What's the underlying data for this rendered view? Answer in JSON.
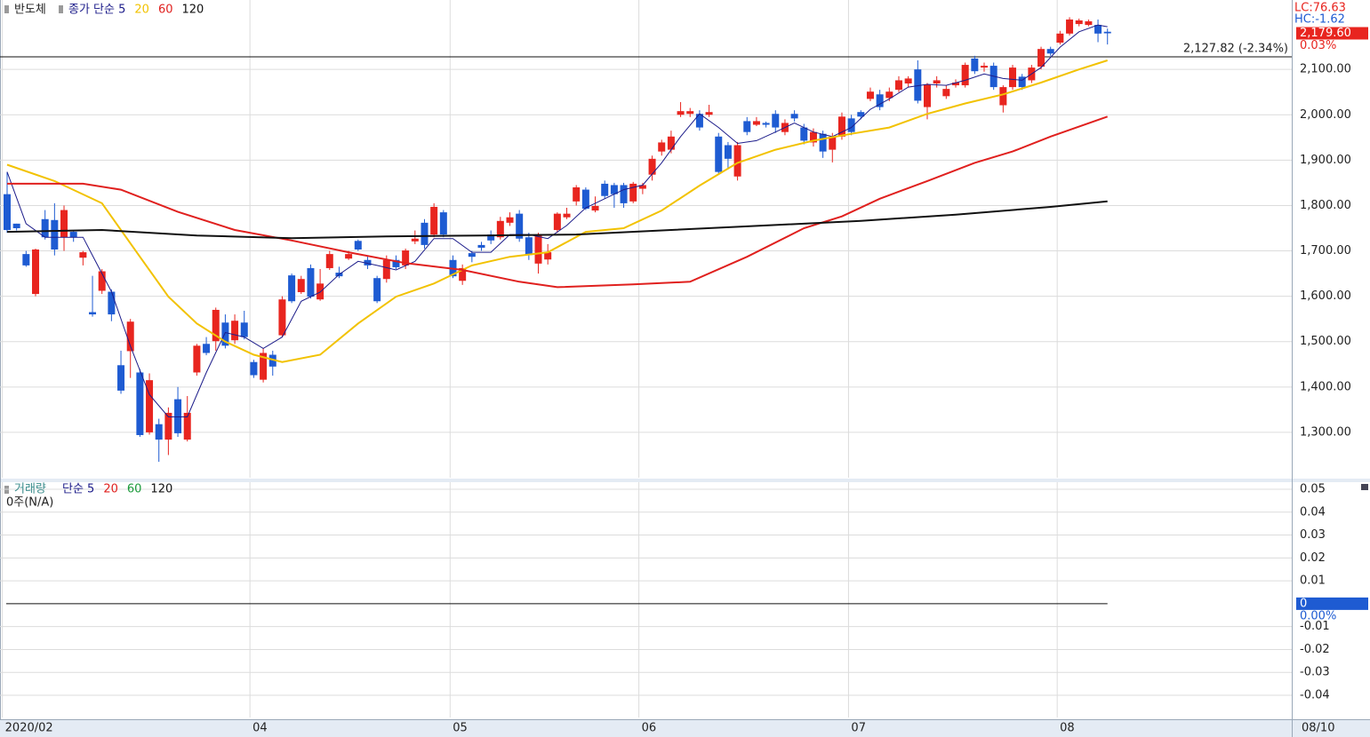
{
  "chart_data": [
    {
      "type": "candlestick",
      "name": "반도체",
      "up_color": "#e8251f",
      "down_color": "#1e5bd2",
      "open": [
        1825,
        1760,
        1693,
        1605,
        1770,
        1768,
        1730,
        1742,
        1685,
        1565,
        1612,
        1610,
        1448,
        1479,
        1432,
        1300,
        1318,
        1284,
        1373,
        1284,
        1432,
        1495,
        1501,
        1542,
        1503,
        1542,
        1455,
        1416,
        1471,
        1514,
        1646,
        1609,
        1662,
        1593,
        1662,
        1652,
        1683,
        1722,
        1680,
        1640,
        1638,
        1680,
        1668,
        1721,
        1762,
        1736,
        1785,
        1680,
        1634,
        1695,
        1713,
        1736,
        1730,
        1762,
        1782,
        1730,
        1672,
        1681,
        1746,
        1774,
        1809,
        1835,
        1789,
        1848,
        1845,
        1845,
        1809,
        1837,
        1868,
        1919,
        1923,
        2000,
        2002,
        2002,
        2000,
        1952,
        1933,
        1864,
        1986,
        1978,
        1982,
        2002,
        1962,
        2002,
        1972,
        1939,
        1958,
        1923,
        1952,
        1992,
        2006,
        2035,
        2045,
        2037,
        2055,
        2069,
        2100,
        2017,
        2069,
        2041,
        2065,
        2065,
        2124,
        2104,
        2108,
        2021,
        2061,
        2084,
        2076,
        2106,
        2145,
        2159,
        2179,
        2200,
        2198,
        2198,
        2183
      ],
      "high": [
        1874,
        1760,
        1700,
        1705,
        1790,
        1805,
        1800,
        1745,
        1700,
        1645,
        1660,
        1615,
        1480,
        1550,
        1440,
        1430,
        1330,
        1355,
        1400,
        1380,
        1495,
        1510,
        1575,
        1560,
        1560,
        1568,
        1460,
        1485,
        1480,
        1600,
        1650,
        1645,
        1670,
        1660,
        1700,
        1665,
        1700,
        1725,
        1690,
        1645,
        1690,
        1690,
        1705,
        1745,
        1770,
        1805,
        1790,
        1690,
        1670,
        1700,
        1720,
        1745,
        1775,
        1785,
        1790,
        1740,
        1740,
        1715,
        1785,
        1795,
        1845,
        1840,
        1820,
        1855,
        1850,
        1850,
        1852,
        1850,
        1910,
        1945,
        1965,
        2028,
        2015,
        2010,
        2022,
        1960,
        1940,
        1940,
        1995,
        1995,
        1985,
        2010,
        1990,
        2010,
        1980,
        1970,
        1965,
        1960,
        2005,
        2000,
        2010,
        2060,
        2055,
        2060,
        2085,
        2085,
        2120,
        2070,
        2085,
        2065,
        2078,
        2115,
        2130,
        2115,
        2115,
        2065,
        2110,
        2090,
        2110,
        2150,
        2150,
        2185,
        2215,
        2212,
        2210,
        2210,
        2190
      ],
      "low": [
        1740,
        1745,
        1665,
        1600,
        1725,
        1690,
        1700,
        1720,
        1668,
        1555,
        1605,
        1545,
        1385,
        1420,
        1290,
        1295,
        1235,
        1250,
        1290,
        1280,
        1425,
        1470,
        1480,
        1485,
        1495,
        1505,
        1420,
        1410,
        1425,
        1510,
        1585,
        1605,
        1595,
        1590,
        1658,
        1640,
        1680,
        1700,
        1660,
        1585,
        1630,
        1660,
        1660,
        1715,
        1705,
        1730,
        1730,
        1640,
        1625,
        1675,
        1700,
        1715,
        1725,
        1755,
        1720,
        1680,
        1650,
        1670,
        1740,
        1770,
        1800,
        1790,
        1785,
        1815,
        1795,
        1795,
        1805,
        1825,
        1855,
        1910,
        1915,
        1995,
        1995,
        1965,
        1995,
        1870,
        1880,
        1855,
        1955,
        1975,
        1972,
        1960,
        1955,
        1985,
        1935,
        1930,
        1905,
        1895,
        1945,
        1955,
        1990,
        2030,
        2010,
        2030,
        2050,
        2060,
        2025,
        1990,
        2060,
        2035,
        2060,
        2060,
        2090,
        2095,
        2055,
        2005,
        2055,
        2055,
        2070,
        2100,
        2130,
        2155,
        2175,
        2195,
        2195,
        2160,
        2155
      ],
      "close": [
        1746,
        1750,
        1668,
        1703,
        1730,
        1703,
        1790,
        1730,
        1697,
        1560,
        1655,
        1560,
        1392,
        1544,
        1294,
        1415,
        1284,
        1343,
        1298,
        1343,
        1491,
        1475,
        1570,
        1491,
        1546,
        1510,
        1426,
        1475,
        1445,
        1593,
        1589,
        1638,
        1599,
        1628,
        1693,
        1644,
        1693,
        1703,
        1668,
        1589,
        1680,
        1664,
        1701,
        1727,
        1713,
        1797,
        1736,
        1644,
        1662,
        1687,
        1707,
        1723,
        1766,
        1774,
        1727,
        1691,
        1736,
        1697,
        1782,
        1782,
        1840,
        1793,
        1799,
        1821,
        1825,
        1805,
        1848,
        1845,
        1903,
        1939,
        1952,
        2008,
        2008,
        1972,
        2006,
        1874,
        1903,
        1933,
        1962,
        1986,
        1978,
        1972,
        1982,
        1992,
        1943,
        1962,
        1919,
        1952,
        1996,
        1962,
        1996,
        2051,
        2017,
        2051,
        2076,
        2080,
        2031,
        2067,
        2076,
        2057,
        2071,
        2110,
        2096,
        2108,
        2061,
        2061,
        2104,
        2061,
        2104,
        2145,
        2135,
        2179,
        2210,
        2208,
        2206,
        2179,
        2179.6
      ],
      "series": [
        {
          "name": "종가 단순 5",
          "color": "#1c1c8a",
          "x": [
            0,
            2,
            4,
            6,
            8,
            9,
            11,
            13,
            15,
            17,
            19,
            21,
            23,
            25,
            27,
            29,
            31,
            33,
            35,
            37,
            39,
            41,
            43,
            45,
            47,
            49,
            51,
            53,
            55,
            57,
            59,
            61,
            63,
            65,
            67,
            69,
            71,
            73,
            75,
            77,
            79,
            81,
            83,
            85,
            87,
            89,
            91,
            93,
            95,
            97,
            99,
            101,
            103,
            105,
            107,
            109,
            111,
            113,
            115,
            116
          ],
          "values": [
            1874,
            1760,
            1730,
            1730,
            1730,
            1690,
            1610,
            1490,
            1383,
            1334,
            1334,
            1432,
            1520,
            1510,
            1485,
            1510,
            1589,
            1609,
            1648,
            1677,
            1668,
            1658,
            1677,
            1727,
            1727,
            1697,
            1697,
            1736,
            1736,
            1727,
            1756,
            1795,
            1815,
            1835,
            1845,
            1894,
            1952,
            2002,
            1972,
            1937,
            1943,
            1962,
            1982,
            1962,
            1952,
            1972,
            2012,
            2035,
            2061,
            2067,
            2065,
            2076,
            2090,
            2080,
            2076,
            2104,
            2149,
            2183,
            2198,
            2194
          ]
        },
        {
          "name": "20",
          "color": "#f2c200",
          "x": [
            0,
            5,
            10,
            14,
            17,
            20,
            23,
            26,
            29,
            33,
            37,
            41,
            45,
            49,
            53,
            57,
            61,
            65,
            69,
            73,
            77,
            81,
            85,
            89,
            93,
            97,
            101,
            105,
            109,
            113,
            116
          ],
          "values": [
            1890,
            1854,
            1805,
            1687,
            1599,
            1540,
            1500,
            1471,
            1455,
            1471,
            1540,
            1599,
            1628,
            1668,
            1687,
            1697,
            1742,
            1750,
            1789,
            1844,
            1894,
            1923,
            1943,
            1958,
            1972,
            2002,
            2025,
            2045,
            2071,
            2100,
            2120
          ]
        },
        {
          "name": "60",
          "color": "#e0201e",
          "x": [
            0,
            8,
            12,
            18,
            24,
            30,
            36,
            42,
            48,
            54,
            58,
            66,
            72,
            78,
            84,
            88,
            92,
            97,
            102,
            106,
            110,
            116
          ],
          "values": [
            1848,
            1848,
            1835,
            1786,
            1746,
            1723,
            1697,
            1673,
            1658,
            1632,
            1620,
            1626,
            1632,
            1687,
            1750,
            1776,
            1815,
            1854,
            1894,
            1919,
            1952,
            1996
          ]
        },
        {
          "name": "120",
          "color": "#111111",
          "x": [
            0,
            10,
            20,
            30,
            40,
            50,
            60,
            70,
            80,
            90,
            100,
            110,
            116
          ],
          "values": [
            1742,
            1746,
            1734,
            1728,
            1732,
            1734,
            1736,
            1746,
            1756,
            1766,
            1780,
            1797,
            1809
          ]
        }
      ],
      "xticks": [
        {
          "value": -0.5,
          "label": "2020/02"
        },
        {
          "value": 25.6,
          "label": "04"
        },
        {
          "value": 46.7,
          "label": "05"
        },
        {
          "value": 66.6,
          "label": "06"
        },
        {
          "value": 88.7,
          "label": "07"
        },
        {
          "value": 110.7,
          "label": "08"
        }
      ],
      "cursor_date_label": "08/10",
      "ylim": [
        1200,
        2253
      ],
      "yticks": [
        {
          "value": 1300,
          "label": "1,300.00"
        },
        {
          "value": 1400,
          "label": "1,400.00"
        },
        {
          "value": 1500,
          "label": "1,500.00"
        },
        {
          "value": 1600,
          "label": "1,600.00"
        },
        {
          "value": 1700,
          "label": "1,700.00"
        },
        {
          "value": 1800,
          "label": "1,800.00"
        },
        {
          "value": 1900,
          "label": "1,900.00"
        },
        {
          "value": 2000,
          "label": "2,000.00"
        },
        {
          "value": 2100,
          "label": "2,100.00"
        }
      ],
      "grid": true,
      "reference_line": {
        "value": 2127.82,
        "label": "2,127.82 (-2.34%)"
      },
      "current_price": {
        "value": 2179.6,
        "label": "2,179.60"
      },
      "change_label": "0.03%",
      "lc_label": "LC:76.63",
      "hc_label": "HC:-1.62"
    },
    {
      "type": "volume",
      "name": "거래량",
      "name_color": "#3a8c8c",
      "legend": [
        {
          "name": "단순 5",
          "color": "#1c1c8a"
        },
        {
          "name": "20",
          "color": "#e0201e"
        },
        {
          "name": "60",
          "color": "#1a9a3a"
        },
        {
          "name": "120",
          "color": "#111111"
        }
      ],
      "status_label": "0주(N/A)",
      "ylim": [
        -0.0497,
        0.0531
      ],
      "yticks": [
        0.05,
        0.04,
        0.03,
        0.02,
        0.01,
        -0.01,
        -0.02,
        -0.03,
        -0.04
      ],
      "current_value": 0,
      "current_percent_label": "0.00%",
      "current_color": "#1e5bd2",
      "grid": true
    }
  ]
}
